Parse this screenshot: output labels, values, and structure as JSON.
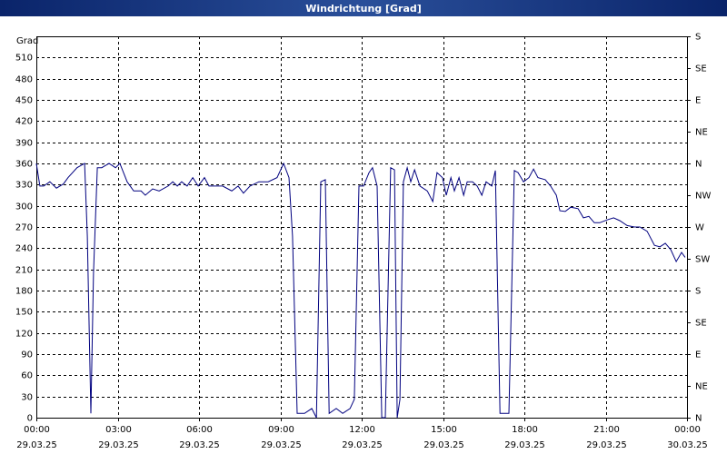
{
  "chart_data": {
    "type": "line",
    "title": "Windrichtung [Grad]",
    "y_label": "Grad",
    "x": [
      0.0,
      0.13,
      0.27,
      0.5,
      0.74,
      1.0,
      1.17,
      1.5,
      1.78,
      1.88,
      2.01,
      2.11,
      2.25,
      2.41,
      2.68,
      2.92,
      3.08,
      3.35,
      3.59,
      3.86,
      4.02,
      4.29,
      4.53,
      4.86,
      5.03,
      5.2,
      5.36,
      5.56,
      5.77,
      5.97,
      6.2,
      6.37,
      6.6,
      6.87,
      7.21,
      7.44,
      7.64,
      7.88,
      8.21,
      8.55,
      8.88,
      9.12,
      9.32,
      9.45,
      9.62,
      9.89,
      10.16,
      10.33,
      10.49,
      10.66,
      10.8,
      11.06,
      11.3,
      11.57,
      11.73,
      11.9,
      12.07,
      12.27,
      12.4,
      12.57,
      12.74,
      12.87,
      13.07,
      13.21,
      13.31,
      13.41,
      13.54,
      13.68,
      13.81,
      13.95,
      14.15,
      14.42,
      14.62,
      14.78,
      14.98,
      15.12,
      15.29,
      15.42,
      15.59,
      15.76,
      15.89,
      16.09,
      16.26,
      16.43,
      16.59,
      16.8,
      16.93,
      17.1,
      17.3,
      17.43,
      17.63,
      17.77,
      17.97,
      18.17,
      18.34,
      18.5,
      18.77,
      18.97,
      19.18,
      19.31,
      19.51,
      19.71,
      19.98,
      20.18,
      20.38,
      20.58,
      20.78,
      21.05,
      21.29,
      21.52,
      21.79,
      22.06,
      22.26,
      22.53,
      22.8,
      23.0,
      23.2,
      23.4,
      23.6,
      23.8,
      23.93
    ],
    "series": [
      {
        "name": "Windrichtung",
        "color": "#00007f",
        "values": [
          360,
          328,
          328,
          334,
          325,
          331,
          340,
          354,
          360,
          257,
          6,
          205,
          354,
          354,
          360,
          354,
          360,
          334,
          321,
          321,
          315,
          324,
          321,
          328,
          334,
          328,
          334,
          328,
          340,
          328,
          340,
          328,
          328,
          328,
          321,
          328,
          318,
          328,
          334,
          334,
          340,
          360,
          340,
          257,
          6,
          6,
          13,
          0,
          334,
          337,
          6,
          13,
          6,
          13,
          26,
          328,
          328,
          347,
          354,
          328,
          0,
          0,
          354,
          351,
          0,
          26,
          334,
          354,
          334,
          351,
          328,
          321,
          306,
          347,
          340,
          315,
          340,
          321,
          340,
          315,
          334,
          334,
          328,
          315,
          334,
          328,
          350,
          6,
          6,
          6,
          350,
          347,
          334,
          340,
          352,
          340,
          337,
          328,
          315,
          293,
          292,
          298,
          296,
          283,
          285,
          276,
          276,
          280,
          283,
          279,
          272,
          270,
          270,
          264,
          244,
          242,
          247,
          238,
          221,
          234,
          227
        ]
      }
    ],
    "xlim": [
      0,
      24
    ],
    "xticks": [
      {
        "value": 0,
        "label": "00:00"
      },
      {
        "value": 3,
        "label": "03:00"
      },
      {
        "value": 6,
        "label": "06:00"
      },
      {
        "value": 9,
        "label": "09:00"
      },
      {
        "value": 12,
        "label": "12:00"
      },
      {
        "value": 15,
        "label": "15:00"
      },
      {
        "value": 18,
        "label": "18:00"
      },
      {
        "value": 21,
        "label": "21:00"
      },
      {
        "value": 24,
        "label": "00:00"
      }
    ],
    "xtick_dates": [
      "29.03.25",
      "29.03.25",
      "29.03.25",
      "29.03.25",
      "29.03.25",
      "29.03.25",
      "29.03.25",
      "29.03.25",
      "30.03.25"
    ],
    "ylim": [
      0,
      540
    ],
    "yticks": [
      0,
      30,
      60,
      90,
      120,
      150,
      180,
      210,
      240,
      270,
      300,
      330,
      360,
      390,
      420,
      450,
      480,
      510
    ],
    "y2lim": [
      0,
      540
    ],
    "y2ticks": [
      {
        "value": 0,
        "label": "N"
      },
      {
        "value": 45,
        "label": "NE"
      },
      {
        "value": 90,
        "label": "E"
      },
      {
        "value": 135,
        "label": "SE"
      },
      {
        "value": 180,
        "label": "S"
      },
      {
        "value": 225,
        "label": "SW"
      },
      {
        "value": 270,
        "label": "W"
      },
      {
        "value": 315,
        "label": "NW"
      },
      {
        "value": 360,
        "label": "N"
      },
      {
        "value": 405,
        "label": "NE"
      },
      {
        "value": 450,
        "label": "E"
      },
      {
        "value": 495,
        "label": "SE"
      },
      {
        "value": 540,
        "label": "S"
      }
    ],
    "grid": true
  }
}
